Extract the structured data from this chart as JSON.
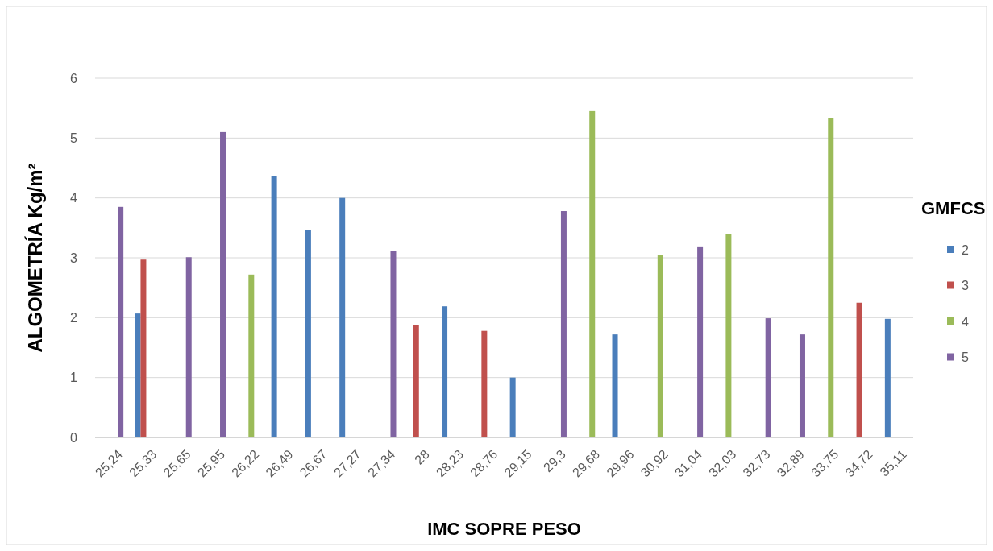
{
  "chart_data": {
    "type": "bar",
    "xlabel": "IMC SOPRE PESO",
    "ylabel": "ALGOMETRÍA Kg/m²",
    "legend_title": "GMFCS",
    "legend": "right",
    "grid": "y",
    "categories": [
      "25,24",
      "25,33",
      "25,65",
      "25,95",
      "26,22",
      "26,49",
      "26,67",
      "27,27",
      "27,34",
      "28",
      "28,23",
      "28,76",
      "29,15",
      "29,3",
      "29,68",
      "29,96",
      "30,92",
      "31,04",
      "32,03",
      "32,73",
      "32,89",
      "33,75",
      "34,72",
      "35,11"
    ],
    "ylim": [
      0,
      6
    ],
    "yticks": [
      0,
      1,
      2,
      3,
      4,
      5,
      6
    ],
    "series": [
      {
        "name": "2",
        "color": "#4a7ebb",
        "values": [
          null,
          2.07,
          null,
          null,
          null,
          4.37,
          3.47,
          4.0,
          null,
          null,
          2.19,
          null,
          1.0,
          null,
          null,
          1.72,
          null,
          null,
          null,
          null,
          null,
          null,
          null,
          1.98
        ]
      },
      {
        "name": "3",
        "color": "#c0504d",
        "values": [
          null,
          2.97,
          null,
          null,
          null,
          null,
          null,
          null,
          null,
          1.87,
          null,
          1.78,
          null,
          null,
          null,
          null,
          null,
          null,
          null,
          null,
          null,
          null,
          2.25,
          null
        ]
      },
      {
        "name": "4",
        "color": "#9bbb59",
        "values": [
          null,
          null,
          null,
          null,
          2.72,
          null,
          null,
          null,
          null,
          null,
          null,
          null,
          null,
          null,
          5.45,
          null,
          3.04,
          null,
          3.39,
          null,
          null,
          5.34,
          null,
          null
        ]
      },
      {
        "name": "5",
        "color": "#8064a2",
        "values": [
          3.85,
          null,
          3.01,
          5.1,
          null,
          null,
          null,
          null,
          3.12,
          null,
          null,
          null,
          null,
          3.78,
          null,
          null,
          null,
          3.19,
          null,
          1.99,
          1.72,
          null,
          null,
          null
        ]
      }
    ]
  }
}
